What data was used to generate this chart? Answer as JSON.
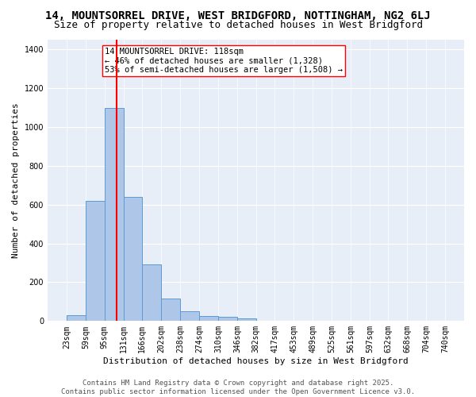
{
  "title1": "14, MOUNTSORREL DRIVE, WEST BRIDGFORD, NOTTINGHAM, NG2 6LJ",
  "title2": "Size of property relative to detached houses in West Bridgford",
  "xlabel": "Distribution of detached houses by size in West Bridgford",
  "ylabel": "Number of detached properties",
  "bar_heights": [
    30,
    620,
    1100,
    640,
    290,
    115,
    50,
    25,
    20,
    15,
    0,
    0,
    0,
    0,
    0,
    0,
    0,
    0,
    0,
    0
  ],
  "bin_edges": [
    23,
    59,
    95,
    131,
    166,
    202,
    238,
    274,
    310,
    346,
    382,
    417,
    453,
    489,
    525,
    561,
    597,
    632,
    668,
    704,
    740
  ],
  "tick_labels": [
    "23sqm",
    "59sqm",
    "95sqm",
    "131sqm",
    "166sqm",
    "202sqm",
    "238sqm",
    "274sqm",
    "310sqm",
    "346sqm",
    "382sqm",
    "417sqm",
    "453sqm",
    "489sqm",
    "525sqm",
    "561sqm",
    "597sqm",
    "632sqm",
    "668sqm",
    "704sqm",
    "740sqm"
  ],
  "bar_color": "#aec6e8",
  "bar_edge_color": "#5b9bd5",
  "vline_x": 118,
  "vline_color": "red",
  "annotation_text": "14 MOUNTSORREL DRIVE: 118sqm\n← 46% of detached houses are smaller (1,328)\n53% of semi-detached houses are larger (1,508) →",
  "annotation_box_color": "white",
  "annotation_box_edge_color": "red",
  "ylim": [
    0,
    1450
  ],
  "yticks": [
    0,
    200,
    400,
    600,
    800,
    1000,
    1200,
    1400
  ],
  "bg_color": "#e8eef7",
  "grid_color": "white",
  "footer_text": "Contains HM Land Registry data © Crown copyright and database right 2025.\nContains public sector information licensed under the Open Government Licence v3.0.",
  "title1_fontsize": 10,
  "title2_fontsize": 9,
  "xlabel_fontsize": 8,
  "ylabel_fontsize": 8,
  "annotation_fontsize": 7.5,
  "footer_fontsize": 6.5,
  "tick_fontsize": 7
}
